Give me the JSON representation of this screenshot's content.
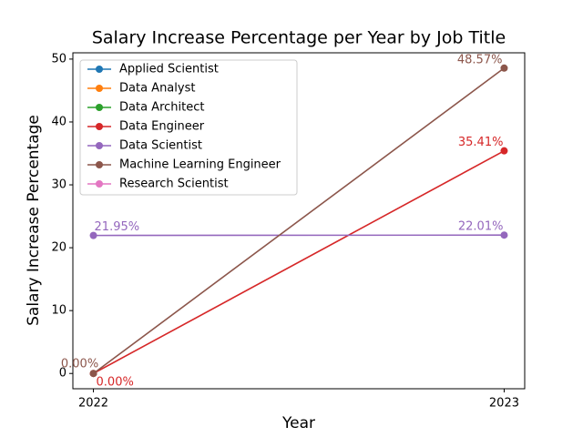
{
  "chart_data": {
    "type": "line",
    "title": "Salary Increase Percentage per Year by Job Title",
    "xlabel": "Year",
    "ylabel": "Salary Increase Percentage",
    "x": [
      2022,
      2023
    ],
    "xlim": [
      2021.95,
      2023.05
    ],
    "xticks": [
      2022,
      2023
    ],
    "ylim": [
      -2.43,
      51.0
    ],
    "yticks": [
      0,
      10,
      20,
      30,
      40,
      50
    ],
    "legend": "upper left",
    "series": [
      {
        "name": "Applied Scientist",
        "color": "#1f77b4",
        "values": [
          null,
          null
        ]
      },
      {
        "name": "Data Analyst",
        "color": "#ff7f0e",
        "values": [
          null,
          null
        ]
      },
      {
        "name": "Data Architect",
        "color": "#2ca02c",
        "values": [
          null,
          null
        ]
      },
      {
        "name": "Data Engineer",
        "color": "#d62728",
        "values": [
          0,
          35.41
        ],
        "value_labels": [
          "0.00%",
          "35.41%"
        ]
      },
      {
        "name": "Data Scientist",
        "color": "#9467bd",
        "values": [
          21.95,
          22.01
        ],
        "value_labels": [
          "21.95%",
          "22.01%"
        ]
      },
      {
        "name": "Machine Learning Engineer",
        "color": "#8c564b",
        "values": [
          0,
          48.57
        ],
        "value_labels": [
          "0.00%",
          "48.57%"
        ]
      },
      {
        "name": "Research Scientist",
        "color": "#e377c2",
        "values": [
          null,
          null
        ]
      }
    ]
  }
}
